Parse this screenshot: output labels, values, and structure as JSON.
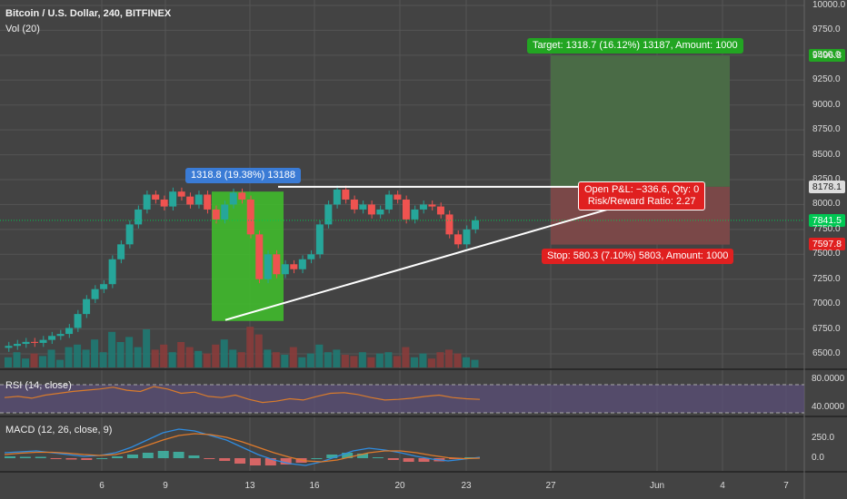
{
  "legend": {
    "title": "Bitcoin / U.S. Dollar, 240, BITFINEX",
    "volume": "Vol (20)",
    "rsi": "RSI (14, close)",
    "macd": "MACD (12, 26, close, 9)"
  },
  "annotations": {
    "range_label": "1318.8 (19.38%) 13188",
    "target_label": "Target: 1318.7 (16.12%) 13187, Amount: 1000",
    "open_pnl": "Open P&L: −336.6, Qty: 0",
    "risk_reward": "Risk/Reward Ratio: 2.27",
    "stop_label": "Stop: 580.3 (7.10%) 5803, Amount: 1000"
  },
  "price_tags": {
    "target": "9496.8",
    "resistance": "8178.1",
    "current": "7841.5",
    "stop": "7597.8"
  },
  "colors": {
    "background": "#434343",
    "up": "#26a69a",
    "down": "#ef5350",
    "green_fill": "#3fc12a",
    "target_zone": "#4a6b46",
    "stop_zone": "#7a4848",
    "range_pill": "#3a7bd5",
    "target_pill": "#22a522",
    "stop_pill": "#e02020",
    "rsi_band": "#5b4e7a",
    "rsi_line": "#d97b2b",
    "macd_line": "#2f8ce0",
    "signal_line": "#e07b2b"
  },
  "chart_data": {
    "type": "candlestick",
    "y_axis_ticks": [
      "10000.0",
      "9750.0",
      "9500.0",
      "9250.0",
      "9000.0",
      "8750.0",
      "8500.0",
      "8250.0",
      "8000.0",
      "7750.0",
      "7500.0",
      "7250.0",
      "7000.0",
      "6750.0",
      "6500.0"
    ],
    "rsi_axis_ticks": [
      "80.0000",
      "40.0000"
    ],
    "macd_axis_ticks": [
      "250.0",
      "0.0"
    ],
    "x_axis_labels": [
      "6",
      "9",
      "13",
      "16",
      "20",
      "23",
      "27",
      "Jun",
      "4",
      "7"
    ],
    "ylim": [
      6500,
      10000
    ],
    "target_price": 9496.8,
    "resistance_price": 8178.1,
    "current_price": 7841.5,
    "stop_price": 7597.8,
    "range_box": {
      "low": 6830,
      "high": 8130
    },
    "trendline_low": [
      {
        "x": 12.3,
        "price": 6840
      },
      {
        "x": 30.8,
        "price": 7900
      }
    ],
    "trendline_high": [
      {
        "x": 14.2,
        "price": 8200
      },
      {
        "x": 24.0,
        "price": 8200
      }
    ],
    "candles_close": [
      6580,
      6600,
      6620,
      6610,
      6640,
      6680,
      6700,
      6760,
      6900,
      7050,
      7150,
      7200,
      7450,
      7600,
      7800,
      7950,
      8100,
      8050,
      7980,
      8130,
      8080,
      8000,
      8100,
      7950,
      7850,
      8000,
      8120,
      8050,
      7700,
      7250,
      7500,
      7300,
      7400,
      7350,
      7450,
      7500,
      7800,
      8000,
      8150,
      8050,
      7950,
      8000,
      7900,
      7950,
      8100,
      8050,
      7850,
      7950,
      8000,
      7980,
      7900,
      7700,
      7600,
      7750,
      7841.5
    ],
    "volume": [
      40,
      60,
      35,
      55,
      45,
      70,
      30,
      80,
      90,
      70,
      110,
      60,
      140,
      100,
      120,
      80,
      150,
      70,
      90,
      60,
      100,
      80,
      65,
      55,
      90,
      110,
      70,
      60,
      160,
      130,
      70,
      60,
      50,
      80,
      40,
      55,
      90,
      60,
      70,
      50,
      45,
      60,
      40,
      55,
      60,
      45,
      80,
      40,
      55,
      35,
      60,
      70,
      55,
      40,
      30
    ],
    "rsi": [
      48,
      50,
      47,
      52,
      55,
      58,
      60,
      62,
      65,
      60,
      58,
      66,
      62,
      55,
      57,
      50,
      48,
      52,
      45,
      40,
      42,
      46,
      44,
      50,
      55,
      56,
      53,
      48,
      44,
      45,
      47,
      50,
      52,
      48,
      46,
      45
    ],
    "macd": [
      60,
      70,
      80,
      60,
      40,
      20,
      30,
      60,
      120,
      200,
      280,
      320,
      300,
      250,
      200,
      120,
      40,
      -20,
      -60,
      -80,
      -40,
      20,
      80,
      110,
      90,
      60,
      20,
      -10,
      -30,
      -10,
      10
    ],
    "signal": [
      40,
      55,
      65,
      65,
      55,
      40,
      30,
      40,
      80,
      140,
      200,
      250,
      270,
      260,
      230,
      180,
      120,
      60,
      10,
      -30,
      -40,
      -20,
      20,
      60,
      80,
      80,
      60,
      30,
      5,
      -5,
      0
    ]
  }
}
